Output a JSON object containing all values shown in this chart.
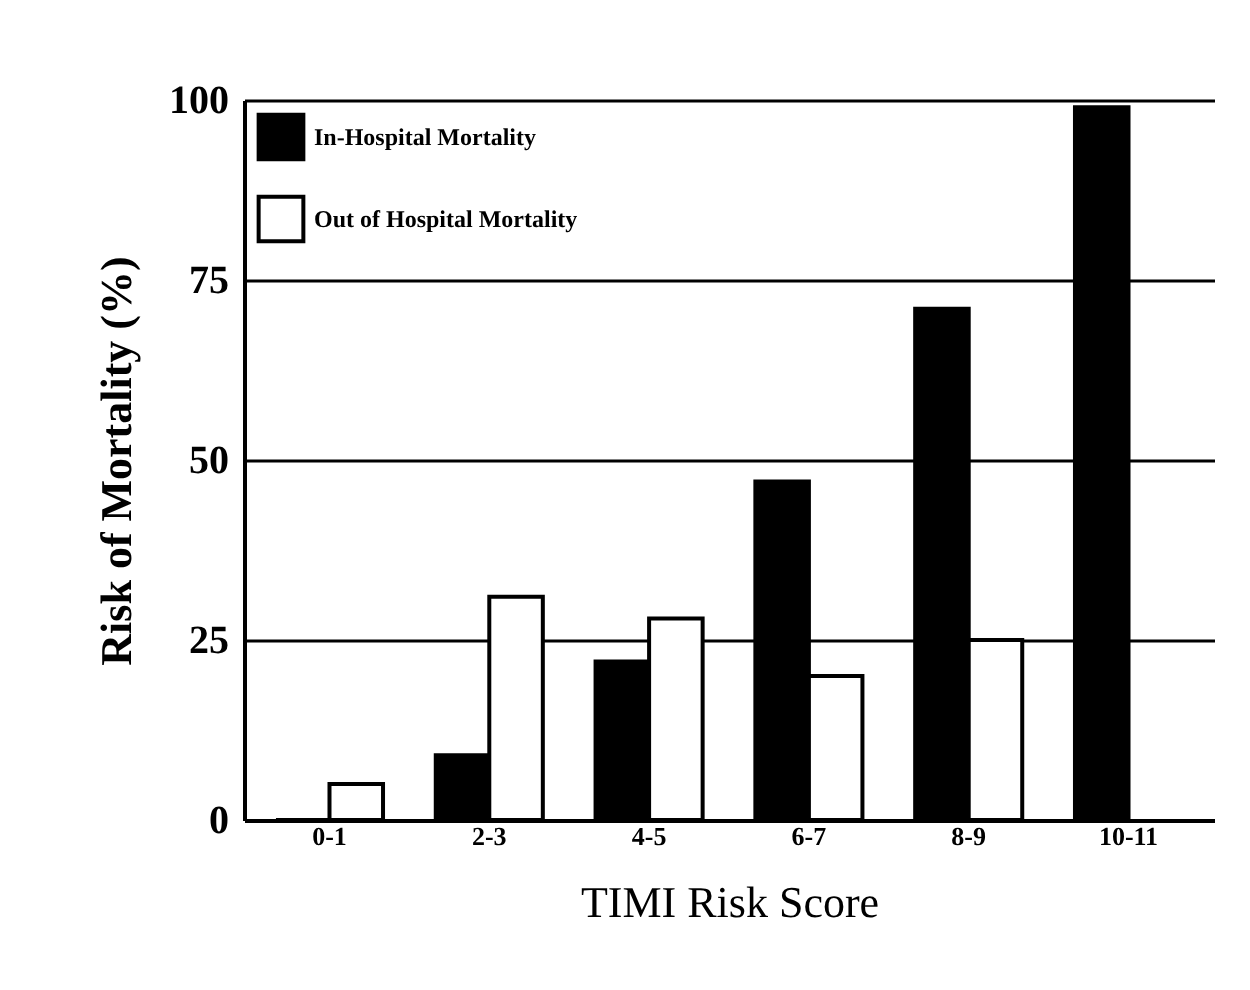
{
  "chart_data": {
    "type": "bar",
    "xlabel": "TIMI Risk Score",
    "ylabel": "Risk of Mortality (%)",
    "categories": [
      "0-1",
      "2-3",
      "4-5",
      "6-7",
      "8-9",
      "10-11"
    ],
    "series": [
      {
        "name": "In-Hospital Mortality",
        "color": "#000000",
        "values": [
          0,
          9,
          22,
          47,
          71,
          99
        ]
      },
      {
        "name": "Out of Hospital Mortality",
        "color": "#ffffff",
        "values": [
          5,
          31,
          28,
          20,
          25,
          null
        ]
      }
    ],
    "ylim": [
      0,
      100
    ],
    "yticks": [
      0,
      25,
      50,
      75,
      100
    ],
    "grid": "y",
    "legend": "top left"
  }
}
